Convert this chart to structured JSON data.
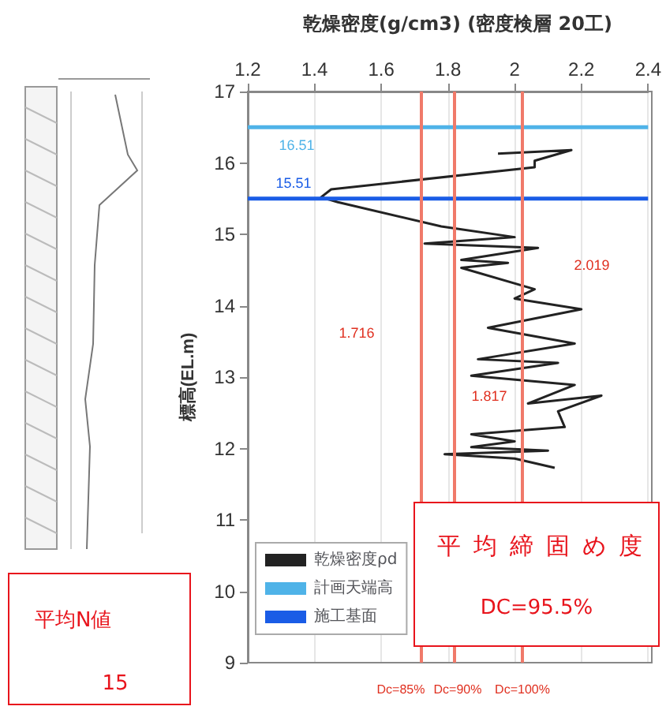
{
  "chart_data": {
    "type": "line",
    "title": "乾燥密度(g/cm3) (密度検層 20工)",
    "ylabel": "標高(EL.m)",
    "xlim": [
      1.2,
      2.4
    ],
    "xticks": [
      1.2,
      1.4,
      1.6,
      1.8,
      2.0,
      2.2,
      2.4
    ],
    "ylim": [
      9,
      17
    ],
    "yticks": [
      9,
      10,
      11,
      12,
      13,
      14,
      15,
      16,
      17
    ],
    "grid": "x",
    "legend": "bottom left",
    "marker": "none",
    "line_style": "solid",
    "series": [
      {
        "name": "乾燥密度ρd",
        "color": "#222222",
        "x": [
          1.95,
          2.17,
          2.06,
          2.06,
          1.45,
          1.42,
          1.47,
          1.78,
          2.0,
          1.73,
          2.07,
          1.84,
          1.98,
          1.84,
          2.06,
          2.0,
          2.2,
          1.92,
          2.18,
          1.89,
          2.13,
          1.87,
          2.18,
          2.04,
          2.26,
          2.13,
          2.15,
          1.87,
          2.0,
          1.87,
          2.1,
          1.79,
          2.0,
          2.12
        ],
        "values": [
          16.13,
          16.18,
          16.03,
          15.94,
          15.63,
          15.52,
          15.45,
          15.11,
          14.96,
          14.87,
          14.81,
          14.64,
          14.6,
          14.53,
          14.23,
          14.1,
          13.95,
          13.69,
          13.47,
          13.25,
          13.2,
          13.02,
          12.89,
          12.63,
          12.74,
          12.52,
          12.3,
          12.2,
          12.1,
          12.02,
          11.97,
          11.92,
          11.86,
          11.73
        ]
      },
      {
        "name": "計画天端高",
        "color": "#4fb3e8",
        "x": [
          1.2,
          2.4
        ],
        "values": [
          16.5,
          16.5
        ]
      },
      {
        "name": "施工基面",
        "color": "#1a5ce6",
        "x": [
          1.2,
          2.4
        ],
        "values": [
          15.5,
          15.5
        ]
      }
    ],
    "ref_lines": [
      {
        "axis": "x",
        "value": 1.716,
        "color": "#f07a6a"
      },
      {
        "axis": "x",
        "value": 1.817,
        "color": "#f07a6a"
      },
      {
        "axis": "x",
        "value": 2.019,
        "color": "#f07a6a"
      }
    ],
    "annotations": [
      "16.51",
      "15.51",
      "1.716",
      "1.817",
      "2.019",
      "Dc=85%",
      "Dc=90%",
      "Dc=100%",
      "平均締固め度",
      "DC=95.5%",
      "平均N値",
      "15"
    ]
  }
}
